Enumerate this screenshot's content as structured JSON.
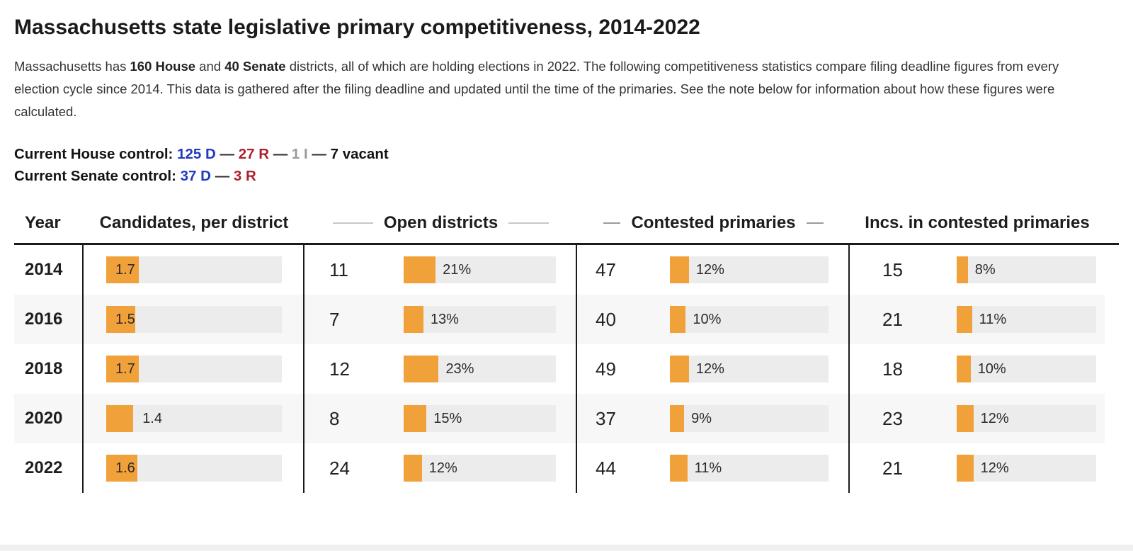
{
  "header": {
    "title": "Massachusetts state legislative primary competitiveness, 2014-2022"
  },
  "intro": {
    "part1": "Massachusetts has ",
    "house_bold": "160 House",
    "part2": " and ",
    "senate_bold": "40 Senate",
    "part3": " districts, all of which are holding elections in 2022. The following competitiveness statistics compare filing deadline figures from every election cycle since 2014. This data is gathered after the filing deadline and updated until the time of the primaries. See the note below for information about how these figures were calculated."
  },
  "control": {
    "sep": "—",
    "house": {
      "label": "Current House control:",
      "dem": "125 D",
      "rep": "27 R",
      "ind": "1 I",
      "vacant": "7 vacant"
    },
    "senate": {
      "label": "Current Senate control:",
      "dem": "37 D",
      "rep": "3 R"
    }
  },
  "table": {
    "headers": {
      "year": "Year",
      "candidates": "Candidates, per district",
      "open": "Open districts",
      "contested": "Contested primaries",
      "incs": "Incs. in contested primaries"
    }
  },
  "colors": {
    "bar_orange": "#F0A139",
    "track_gray": "#ECECEC",
    "dem_blue": "#2139BF",
    "rep_red": "#AF1E2D",
    "ind_gray": "#9A9A9A"
  },
  "chart_data": {
    "type": "bar",
    "title": "Massachusetts state legislative primary competitiveness, 2014-2022",
    "categories": [
      "2014",
      "2016",
      "2018",
      "2020",
      "2022"
    ],
    "series": [
      {
        "name": "Candidates, per district",
        "values": [
          1.7,
          1.5,
          1.7,
          1.4,
          1.6
        ]
      },
      {
        "name": "Open districts (count)",
        "values": [
          11,
          7,
          12,
          8,
          24
        ]
      },
      {
        "name": "Open districts (%)",
        "values": [
          21,
          13,
          23,
          15,
          12
        ]
      },
      {
        "name": "Contested primaries (count)",
        "values": [
          47,
          40,
          49,
          37,
          44
        ]
      },
      {
        "name": "Contested primaries (%)",
        "values": [
          12,
          10,
          12,
          9,
          11
        ]
      },
      {
        "name": "Incs. in contested primaries (count)",
        "values": [
          15,
          21,
          18,
          23,
          21
        ]
      },
      {
        "name": "Incs. in contested primaries (%)",
        "values": [
          8,
          11,
          10,
          12,
          12
        ]
      }
    ],
    "rows": [
      {
        "year": "2014",
        "candidates_per_district": 1.7,
        "open_count": 11,
        "open_pct": 21,
        "contested_count": 47,
        "contested_pct": 12,
        "incs_count": 15,
        "incs_pct": 8
      },
      {
        "year": "2016",
        "candidates_per_district": 1.5,
        "open_count": 7,
        "open_pct": 13,
        "contested_count": 40,
        "contested_pct": 10,
        "incs_count": 21,
        "incs_pct": 11
      },
      {
        "year": "2018",
        "candidates_per_district": 1.7,
        "open_count": 12,
        "open_pct": 23,
        "contested_count": 49,
        "contested_pct": 12,
        "incs_count": 18,
        "incs_pct": 10
      },
      {
        "year": "2020",
        "candidates_per_district": 1.4,
        "open_count": 8,
        "open_pct": 15,
        "contested_count": 37,
        "contested_pct": 9,
        "incs_count": 23,
        "incs_pct": 12
      },
      {
        "year": "2022",
        "candidates_per_district": 1.6,
        "open_count": 24,
        "open_pct": 12,
        "contested_count": 44,
        "contested_pct": 11,
        "incs_count": 21,
        "incs_pct": 12
      }
    ],
    "pct_axis_range": [
      0,
      100
    ],
    "grid": false,
    "legend": false
  }
}
